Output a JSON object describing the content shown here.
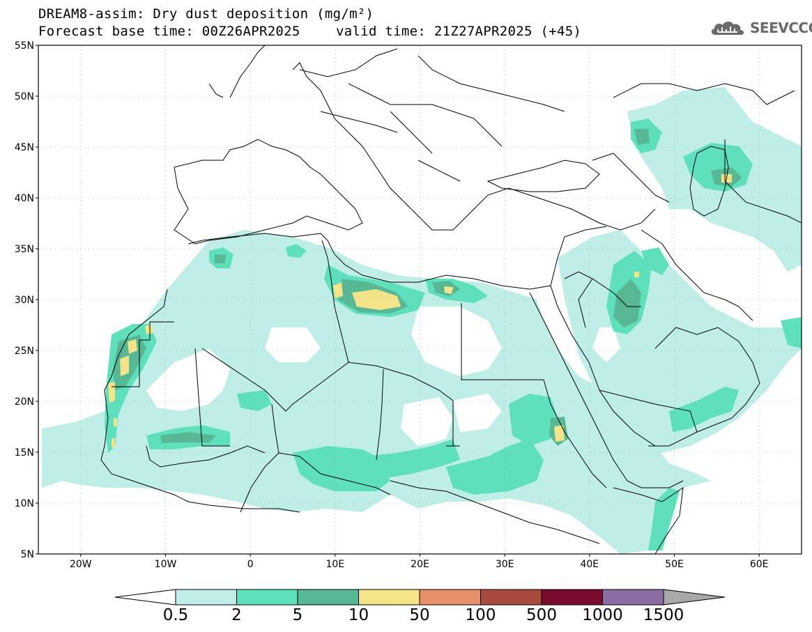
{
  "header": {
    "title_line1": "DREAM8-assim: Dry dust deposition (mg/m²)",
    "title_line2": "Forecast base time: 00Z26APR2025",
    "valid_time": "valid time: 21Z27APR2025 (+45)",
    "logo_text": "SEEVCCC",
    "logo_icon": "cloud-logo-icon"
  },
  "map": {
    "lon_range": [
      -25,
      65
    ],
    "lat_range": [
      5,
      55
    ],
    "lat_labels": [
      "55N",
      "50N",
      "45N",
      "40N",
      "35N",
      "30N",
      "25N",
      "20N",
      "15N",
      "10N",
      "5N"
    ],
    "lon_labels": [
      "20W",
      "10W",
      "0",
      "10E",
      "20E",
      "30E",
      "40E",
      "50E",
      "60E"
    ],
    "grid": "dotted",
    "colors": {
      "ocean": "#ffffff",
      "land": "#ffffff",
      "coast": "#000000",
      "border": "#000000"
    }
  },
  "legend": {
    "levels": [
      "0.5",
      "2",
      "5",
      "10",
      "50",
      "100",
      "500",
      "1000",
      "1500"
    ],
    "colors": [
      "#ffffff",
      "#bfede7",
      "#5ee0bd",
      "#58b895",
      "#f3e48a",
      "#e8906a",
      "#a84a3e",
      "#7a0a2e",
      "#8a6ca3",
      "#a8a8a8"
    ]
  }
}
